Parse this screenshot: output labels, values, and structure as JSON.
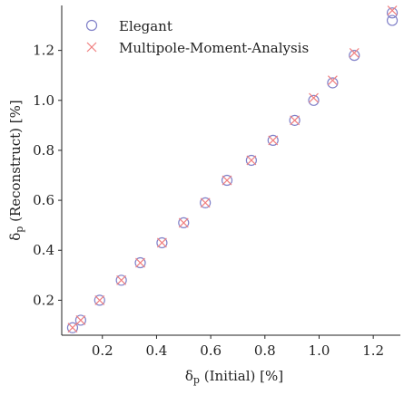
{
  "chart_data": {
    "type": "scatter",
    "xlabel_prefix": "δ",
    "xlabel_sub": "p",
    "xlabel_suffix": " (Initial) [%]",
    "ylabel_prefix": "δ",
    "ylabel_sub": "p",
    "ylabel_suffix": " (Reconstruct) [%]",
    "xlim": [
      0.05,
      1.3
    ],
    "ylim": [
      0.06,
      1.38
    ],
    "x_ticks": [
      0.2,
      0.4,
      0.6,
      0.8,
      1.0,
      1.2
    ],
    "x_tick_labels": [
      "0.2",
      "0.4",
      "0.6",
      "0.8",
      "1.0",
      "1.2"
    ],
    "y_ticks": [
      0.2,
      0.4,
      0.6,
      0.8,
      1.0,
      1.2
    ],
    "y_tick_labels": [
      "0.2",
      "0.4",
      "0.6",
      "0.8",
      "1.0",
      "1.2"
    ],
    "grid": false,
    "legend_position": "top-left",
    "series": [
      {
        "name": "Elegant",
        "marker": "circle",
        "color": "#8080c8",
        "points": [
          [
            0.09,
            0.09
          ],
          [
            0.12,
            0.12
          ],
          [
            0.19,
            0.2
          ],
          [
            0.27,
            0.28
          ],
          [
            0.34,
            0.35
          ],
          [
            0.42,
            0.43
          ],
          [
            0.5,
            0.51
          ],
          [
            0.58,
            0.59
          ],
          [
            0.66,
            0.68
          ],
          [
            0.75,
            0.76
          ],
          [
            0.83,
            0.84
          ],
          [
            0.91,
            0.92
          ],
          [
            0.98,
            1.0
          ],
          [
            1.05,
            1.07
          ],
          [
            1.13,
            1.18
          ],
          [
            1.27,
            1.35
          ],
          [
            1.27,
            1.32
          ]
        ]
      },
      {
        "name": "Multipole-Moment-Analysis",
        "marker": "x",
        "color": "#f08080",
        "points": [
          [
            0.09,
            0.09
          ],
          [
            0.12,
            0.12
          ],
          [
            0.19,
            0.2
          ],
          [
            0.27,
            0.28
          ],
          [
            0.34,
            0.35
          ],
          [
            0.42,
            0.43
          ],
          [
            0.5,
            0.51
          ],
          [
            0.58,
            0.59
          ],
          [
            0.66,
            0.68
          ],
          [
            0.75,
            0.76
          ],
          [
            0.83,
            0.84
          ],
          [
            0.91,
            0.92
          ],
          [
            0.98,
            1.01
          ],
          [
            1.05,
            1.08
          ],
          [
            1.13,
            1.19
          ],
          [
            1.27,
            1.36
          ]
        ]
      }
    ]
  }
}
